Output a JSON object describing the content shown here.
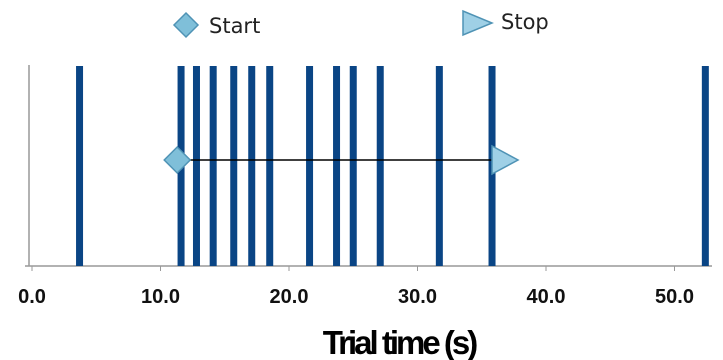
{
  "chart_data": {
    "type": "event-raster",
    "xlabel": "Trial time (s)",
    "xlim": [
      0,
      53
    ],
    "x_ticks": [
      {
        "value": 0,
        "label": "0.0"
      },
      {
        "value": 10,
        "label": "10.0"
      },
      {
        "value": 20,
        "label": "20.0"
      },
      {
        "value": 30,
        "label": "30.0"
      },
      {
        "value": 40,
        "label": "40.0"
      },
      {
        "value": 50,
        "label": "50.0"
      }
    ],
    "events": [
      3.7,
      11.6,
      12.8,
      14.1,
      15.7,
      17.1,
      18.5,
      21.6,
      23.7,
      25.0,
      27.1,
      31.7,
      35.8,
      52.4
    ],
    "start": {
      "label": "Start",
      "value": 11.3
    },
    "stop": {
      "label": "Stop",
      "value": 35.8
    },
    "legend": [
      {
        "name": "Start",
        "marker": "diamond"
      },
      {
        "name": "Stop",
        "marker": "triangle"
      }
    ],
    "legend_position": "top",
    "grid": false
  },
  "colors": {
    "event": "#0a4585",
    "marker_fill": "#7fbfd9",
    "marker_stroke": "#4f93b5",
    "axis": "#999999",
    "arrow": "#000000"
  }
}
